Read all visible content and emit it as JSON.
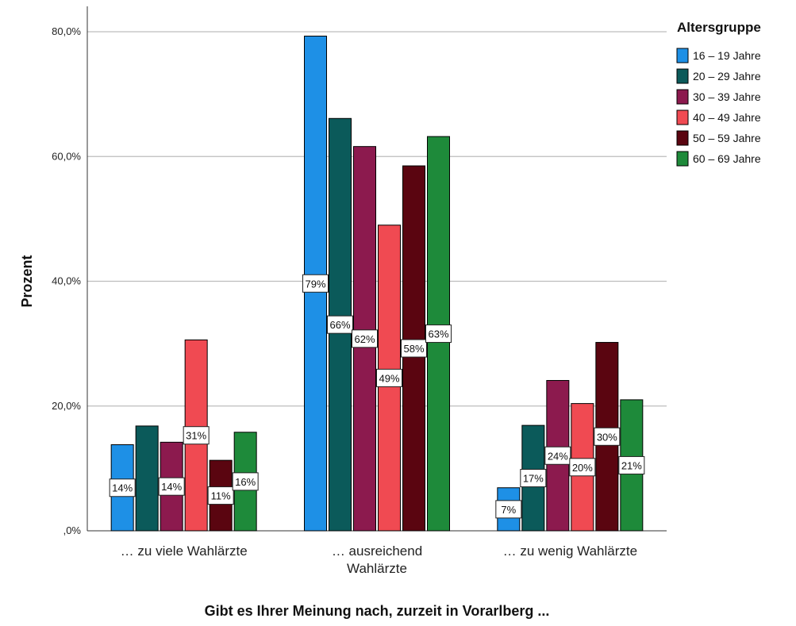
{
  "chart_data": {
    "type": "bar",
    "xlabel": "Gibt es Ihrer Meinung nach, zurzeit in Vorarlberg ...",
    "ylabel": "Prozent",
    "ylim": [
      0,
      80
    ],
    "yticks": [
      0,
      20,
      40,
      60,
      80
    ],
    "ytick_labels": [
      ",0%",
      "20,0%",
      "40,0%",
      "60,0%",
      "80,0%"
    ],
    "grid": true,
    "legend_title": "Altersgruppe",
    "legend_position": "top-right",
    "categories": [
      [
        "… zu viele Wahlärzte"
      ],
      [
        "… ausreichend",
        "Wahlärzte"
      ],
      [
        "… zu wenig Wahlärzte"
      ]
    ],
    "series": [
      {
        "name": "16 – 19 Jahre",
        "color": "#1e90e6",
        "values": [
          13.8,
          79.3,
          6.9
        ],
        "labels": [
          "14%",
          "79%",
          "7%"
        ]
      },
      {
        "name": "20 – 29 Jahre",
        "color": "#0b5a5a",
        "values": [
          16.8,
          66.1,
          16.9
        ],
        "labels": [
          "",
          "66%",
          "17%"
        ]
      },
      {
        "name": "30 – 39 Jahre",
        "color": "#8c1a4e",
        "values": [
          14.2,
          61.6,
          24.1
        ],
        "labels": [
          "14%",
          "62%",
          "24%"
        ]
      },
      {
        "name": "40 – 49 Jahre",
        "color": "#f04a52",
        "values": [
          30.6,
          49.0,
          20.4
        ],
        "labels": [
          "31%",
          "49%",
          "20%"
        ]
      },
      {
        "name": "50 – 59 Jahre",
        "color": "#5a0510",
        "values": [
          11.3,
          58.5,
          30.2
        ],
        "labels": [
          "11%",
          "58%",
          "30%"
        ]
      },
      {
        "name": "60 – 69 Jahre",
        "color": "#1e8a3a",
        "values": [
          15.8,
          63.2,
          21.0
        ],
        "labels": [
          "16%",
          "63%",
          "21%"
        ]
      }
    ]
  }
}
